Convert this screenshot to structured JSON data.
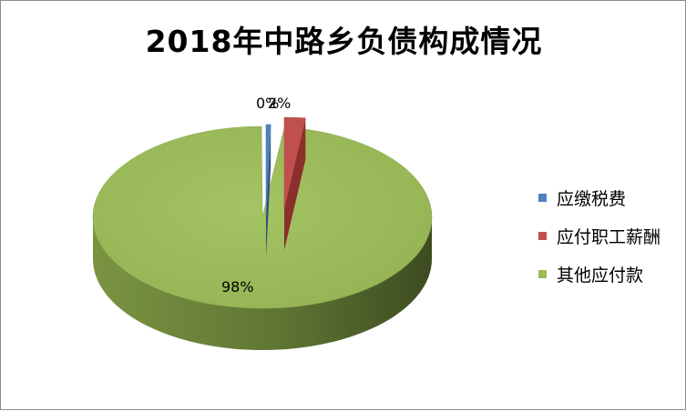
{
  "chart_data": {
    "type": "pie",
    "title": "2018年中路乡负债构成情况",
    "categories": [
      "应缴税费",
      "应付职工薪酬",
      "其他应付款"
    ],
    "values": [
      0,
      2,
      98
    ],
    "data_labels": [
      "0%",
      "2%",
      "98%"
    ],
    "colors": [
      "#4f81bd",
      "#c0504d",
      "#9bbb59"
    ],
    "legend_position": "right",
    "exploded": true,
    "three_d": true
  }
}
